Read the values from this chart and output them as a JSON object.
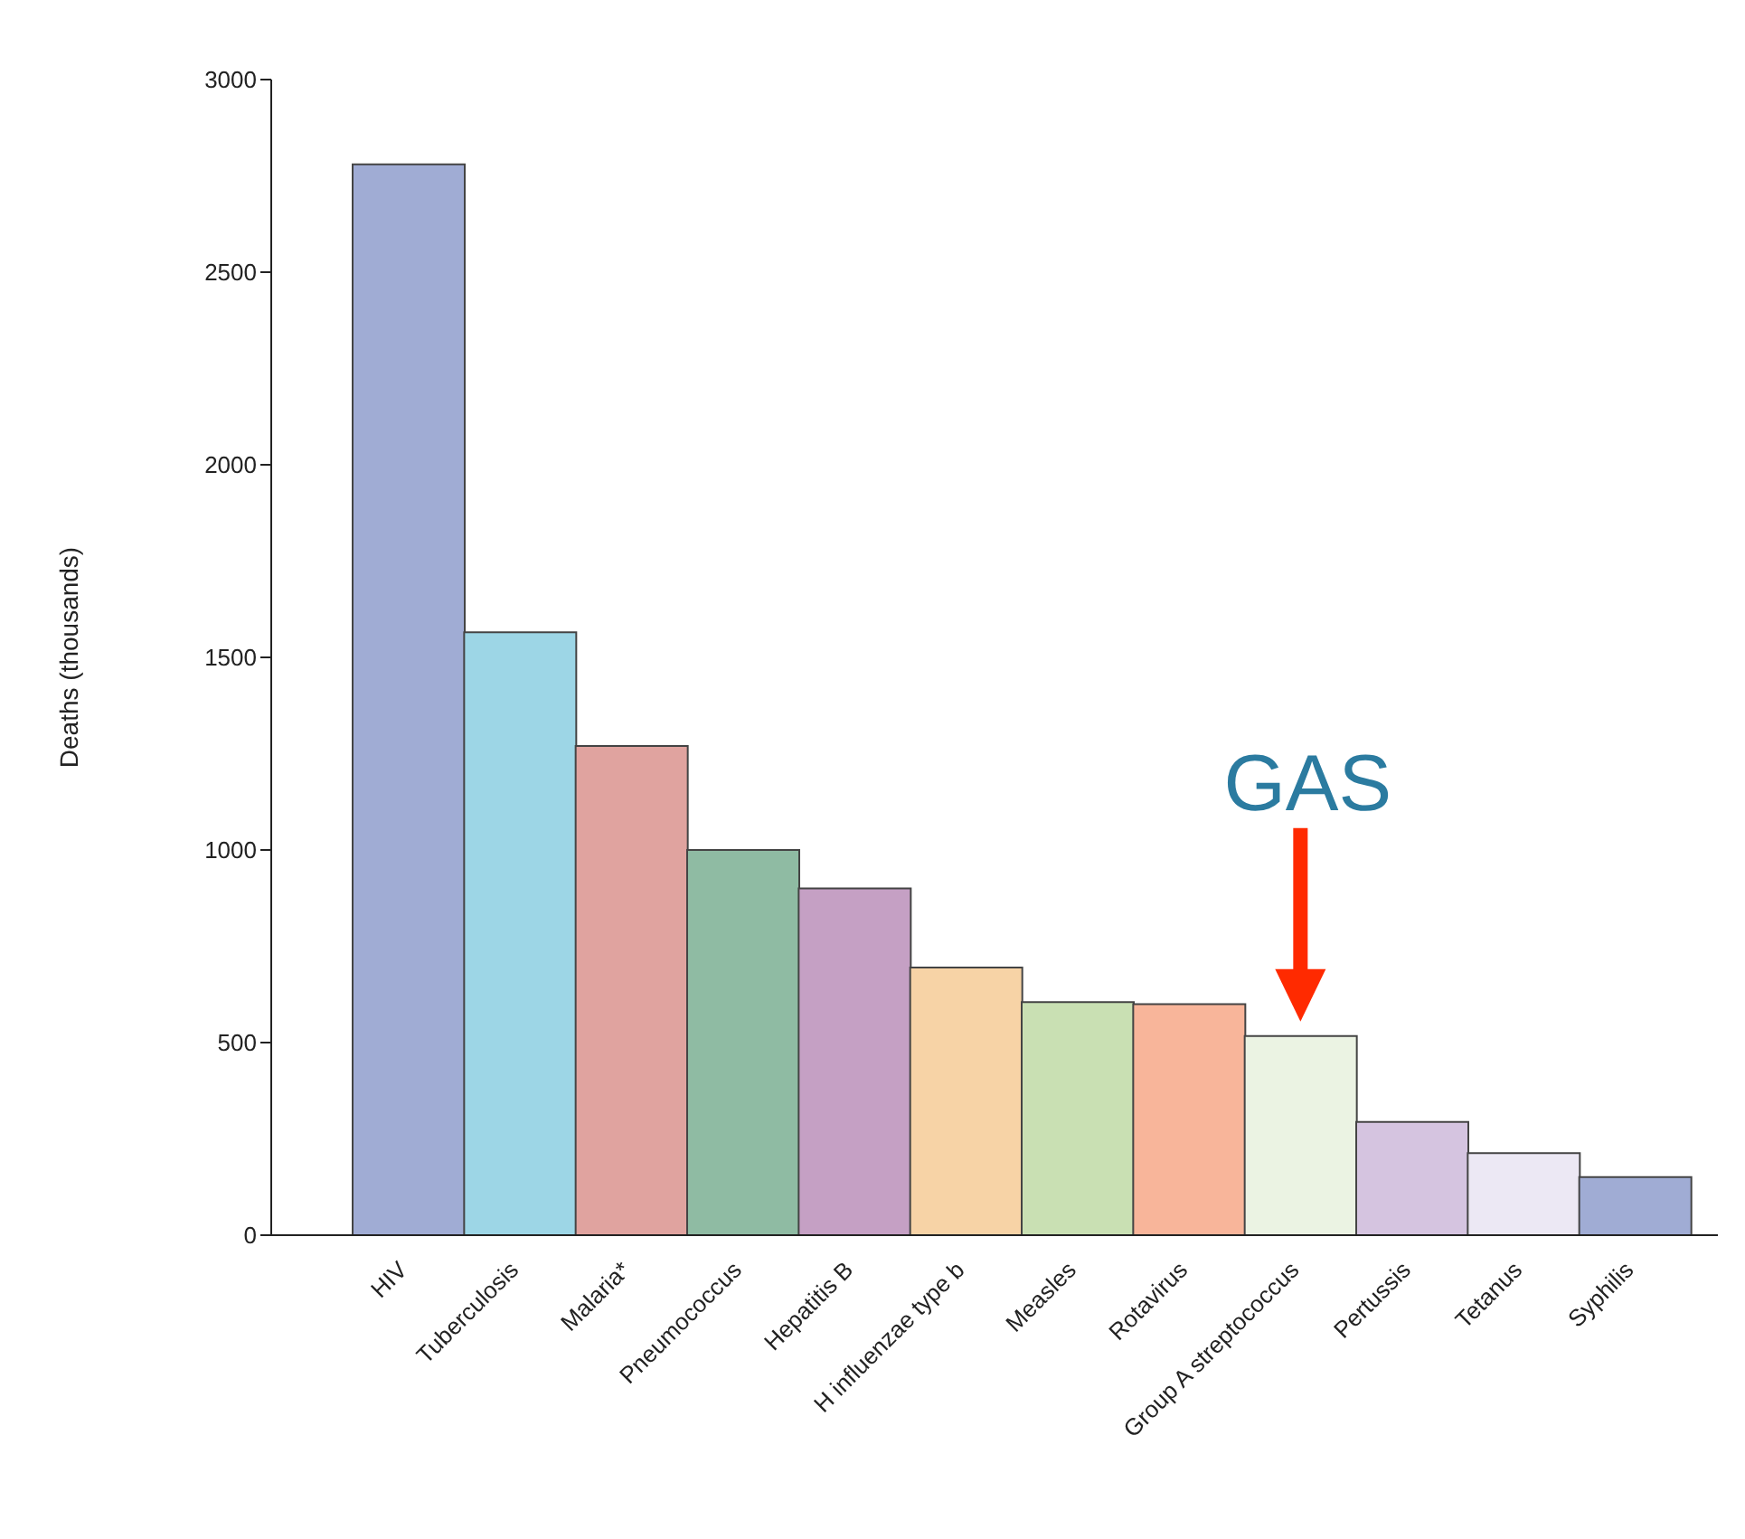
{
  "chart_data": {
    "type": "bar",
    "ylabel": "Deaths (thousands)",
    "categories": [
      "HIV",
      "Tuberculosis",
      "Malaria*",
      "Pneumococcus",
      "Hepatitis B",
      "H influenzae type b",
      "Measles",
      "Rotavirus",
      "Group A streptococcus",
      "Pertussis",
      "Tetanus",
      "Syphilis"
    ],
    "values": [
      2780,
      1565,
      1270,
      1000,
      900,
      695,
      605,
      600,
      517,
      294,
      213,
      151
    ],
    "colors": [
      "#a0acd4",
      "#9dd6e6",
      "#e0a39f",
      "#8fbba3",
      "#c5a0c4",
      "#f7d3a6",
      "#c9e0b3",
      "#f8b59a",
      "#ebf3e3",
      "#d5c4e0",
      "#ece8f4",
      "#a0acd4"
    ],
    "ylim": [
      0,
      3000
    ],
    "yticks": [
      0,
      500,
      1000,
      1500,
      2000,
      2500,
      3000
    ],
    "grid": false,
    "legend": false,
    "annotations": [
      {
        "text": "GAS",
        "x": "Group A streptococcus",
        "y": 517
      }
    ]
  }
}
